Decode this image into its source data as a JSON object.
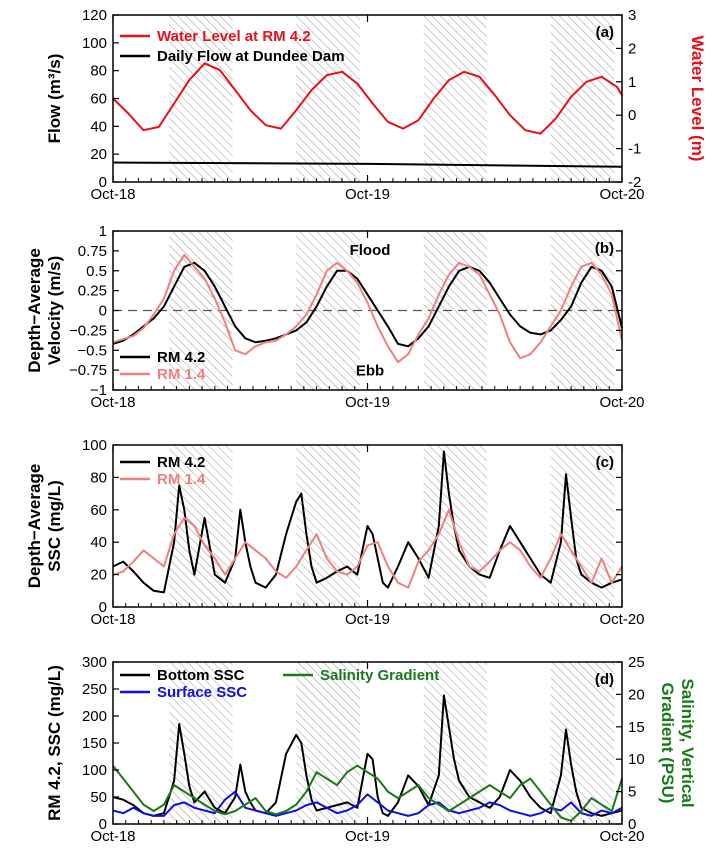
{
  "colors": {
    "red": "#e8101a",
    "pink": "#f08080",
    "black": "#000000",
    "blue": "#1010e0",
    "green": "#1a7a1a",
    "hatch": "#999999"
  },
  "chart_data": [
    {
      "panel": "(a)",
      "type": "line",
      "ylabel": "Flow (m³/s)",
      "ylabel2": "Water Level (m)",
      "ylim": [
        0,
        120
      ],
      "yticks": [
        0,
        20,
        40,
        60,
        80,
        100,
        120
      ],
      "ylim2": [
        -2,
        3
      ],
      "yticks2": [
        -2,
        -1,
        0,
        1,
        2,
        3
      ],
      "xticks": [
        "Oct-18",
        "Oct-19",
        "Oct-20"
      ],
      "legend": [
        "Water Level at RM 4.2",
        "Daily Flow at Dundee Dam"
      ],
      "shaded_intervals_hours": [
        [
          11,
          23.5
        ],
        [
          36,
          48.5
        ],
        [
          61,
          73.5
        ],
        [
          86,
          98.5
        ]
      ],
      "series": [
        {
          "name": "Water Level at RM 4.2",
          "axis": "right",
          "color": "red",
          "x": [
            0,
            3,
            6,
            9,
            12,
            15,
            18,
            21,
            24,
            27,
            30,
            33,
            36,
            39,
            42,
            45,
            48,
            51,
            54,
            57,
            60,
            63,
            66,
            69,
            72,
            75,
            78,
            81,
            84,
            87,
            90,
            93,
            96,
            99,
            100
          ],
          "y": [
            0.5,
            0.05,
            -0.45,
            -0.35,
            0.35,
            1.05,
            1.55,
            1.35,
            0.75,
            0.15,
            -0.3,
            -0.4,
            0.15,
            0.75,
            1.2,
            1.3,
            0.95,
            0.35,
            -0.2,
            -0.4,
            -0.15,
            0.5,
            1.05,
            1.3,
            1.15,
            0.6,
            0.0,
            -0.45,
            -0.55,
            -0.1,
            0.55,
            1.0,
            1.15,
            0.85,
            0.6
          ]
        },
        {
          "name": "Daily Flow at Dundee Dam",
          "axis": "left",
          "color": "black",
          "x": [
            0,
            50,
            100
          ],
          "y": [
            14,
            13,
            11
          ]
        }
      ]
    },
    {
      "panel": "(b)",
      "type": "line",
      "ylabel": "Depth−Average\nVelocity (m/s)",
      "ylim": [
        -1,
        1
      ],
      "yticks": [
        -1,
        -0.75,
        -0.5,
        -0.25,
        0,
        0.25,
        0.5,
        0.75,
        1
      ],
      "yticklabels": [
        "−1",
        "−0.75",
        "−0.5",
        "−0.25",
        "0",
        "0.25",
        "0.5",
        "0.75",
        "1"
      ],
      "xticks": [
        "Oct-18",
        "Oct-19",
        "Oct-20"
      ],
      "annotations": [
        "Flood",
        "Ebb"
      ],
      "legend": [
        "RM 4.2",
        "RM 1.4"
      ],
      "series": [
        {
          "name": "RM 4.2",
          "color": "black",
          "x": [
            0,
            2,
            4,
            6,
            8,
            10,
            12,
            14,
            16,
            18,
            20,
            22,
            24,
            26,
            28,
            30,
            32,
            34,
            36,
            38,
            40,
            42,
            44,
            46,
            48,
            50,
            52,
            54,
            56,
            58,
            60,
            62,
            64,
            66,
            68,
            70,
            72,
            74,
            76,
            78,
            80,
            82,
            84,
            86,
            88,
            90,
            92,
            94,
            96,
            98,
            100
          ],
          "y": [
            -0.42,
            -0.38,
            -0.3,
            -0.2,
            -0.1,
            0.05,
            0.3,
            0.55,
            0.6,
            0.5,
            0.3,
            0.05,
            -0.2,
            -0.35,
            -0.4,
            -0.38,
            -0.35,
            -0.3,
            -0.25,
            -0.15,
            0.05,
            0.3,
            0.5,
            0.5,
            0.4,
            0.2,
            0.0,
            -0.2,
            -0.42,
            -0.45,
            -0.35,
            -0.2,
            0.05,
            0.3,
            0.5,
            0.55,
            0.5,
            0.35,
            0.15,
            -0.05,
            -0.2,
            -0.28,
            -0.3,
            -0.25,
            -0.12,
            0.05,
            0.35,
            0.55,
            0.5,
            0.3,
            -0.22
          ]
        },
        {
          "name": "RM 1.4",
          "color": "pink",
          "x": [
            0,
            2,
            4,
            6,
            8,
            10,
            12,
            14,
            16,
            18,
            20,
            22,
            24,
            26,
            28,
            30,
            32,
            34,
            36,
            38,
            40,
            42,
            44,
            46,
            48,
            50,
            52,
            54,
            56,
            58,
            60,
            62,
            64,
            66,
            68,
            70,
            72,
            74,
            76,
            78,
            80,
            82,
            84,
            86,
            88,
            90,
            92,
            94,
            96,
            98,
            100
          ],
          "y": [
            -0.4,
            -0.36,
            -0.32,
            -0.22,
            -0.05,
            0.15,
            0.5,
            0.7,
            0.55,
            0.4,
            0.15,
            -0.15,
            -0.5,
            -0.55,
            -0.45,
            -0.4,
            -0.38,
            -0.3,
            -0.2,
            -0.05,
            0.2,
            0.5,
            0.6,
            0.5,
            0.35,
            0.1,
            -0.2,
            -0.45,
            -0.65,
            -0.55,
            -0.3,
            -0.1,
            0.2,
            0.45,
            0.6,
            0.55,
            0.45,
            0.2,
            -0.05,
            -0.4,
            -0.6,
            -0.55,
            -0.4,
            -0.2,
            0.0,
            0.3,
            0.55,
            0.6,
            0.45,
            0.2,
            -0.38
          ]
        }
      ]
    },
    {
      "panel": "(c)",
      "type": "line",
      "ylabel": "Depth−Average\nSSC (mg/L)",
      "ylim": [
        0,
        100
      ],
      "yticks": [
        0,
        20,
        40,
        60,
        80,
        100
      ],
      "xticks": [
        "Oct-18",
        "Oct-19",
        "Oct-20"
      ],
      "legend": [
        "RM 4.2",
        "RM 1.4"
      ],
      "series": [
        {
          "name": "RM 4.2",
          "color": "black",
          "x": [
            0,
            2,
            4,
            6,
            8,
            10,
            12,
            13,
            14,
            15,
            16,
            18,
            20,
            22,
            24,
            25,
            26,
            27,
            28,
            30,
            32,
            34,
            36,
            37,
            38,
            39,
            40,
            42,
            44,
            46,
            48,
            50,
            51,
            52,
            53,
            54,
            56,
            58,
            60,
            62,
            64,
            65,
            66,
            67,
            68,
            70,
            72,
            74,
            76,
            78,
            80,
            82,
            84,
            86,
            88,
            89,
            90,
            91,
            92,
            94,
            96,
            98,
            100
          ],
          "y": [
            25,
            28,
            22,
            15,
            10,
            9,
            40,
            75,
            60,
            35,
            20,
            55,
            20,
            15,
            30,
            60,
            40,
            25,
            15,
            12,
            20,
            45,
            65,
            70,
            45,
            25,
            15,
            18,
            22,
            25,
            20,
            50,
            45,
            30,
            15,
            12,
            25,
            40,
            30,
            18,
            50,
            96,
            70,
            50,
            35,
            25,
            20,
            18,
            35,
            50,
            40,
            30,
            20,
            15,
            40,
            82,
            55,
            30,
            20,
            15,
            12,
            15,
            17
          ]
        },
        {
          "name": "RM 1.4",
          "color": "pink",
          "x": [
            0,
            2,
            4,
            6,
            8,
            10,
            12,
            14,
            16,
            18,
            20,
            22,
            24,
            26,
            28,
            30,
            32,
            34,
            36,
            38,
            40,
            42,
            44,
            46,
            48,
            50,
            52,
            54,
            56,
            58,
            60,
            62,
            64,
            66,
            68,
            70,
            72,
            74,
            76,
            78,
            80,
            82,
            84,
            86,
            88,
            90,
            92,
            94,
            96,
            98,
            100
          ],
          "y": [
            20,
            22,
            28,
            35,
            30,
            25,
            45,
            55,
            50,
            38,
            30,
            20,
            30,
            40,
            35,
            30,
            22,
            18,
            25,
            35,
            45,
            30,
            22,
            20,
            25,
            38,
            40,
            25,
            15,
            12,
            28,
            35,
            45,
            60,
            40,
            25,
            22,
            28,
            35,
            40,
            35,
            25,
            18,
            30,
            45,
            35,
            25,
            15,
            30,
            15,
            25
          ]
        }
      ]
    },
    {
      "panel": "(d)",
      "type": "line",
      "ylabel": "RM 4.2, SSC (mg/L)",
      "ylabel2": "Salinity, Vertical\nGradient (PSU)",
      "ylim": [
        0,
        300
      ],
      "yticks": [
        0,
        50,
        100,
        150,
        200,
        250,
        300
      ],
      "ylim2": [
        0,
        25
      ],
      "yticks2": [
        0,
        5,
        10,
        15,
        20,
        25
      ],
      "xticks": [
        "Oct-18",
        "Oct-19",
        "Oct-20"
      ],
      "legend": [
        "Bottom SSC",
        "Surface SSC",
        "Salinity Gradient"
      ],
      "series": [
        {
          "name": "Bottom SSC",
          "color": "black",
          "x": [
            0,
            2,
            4,
            6,
            8,
            10,
            12,
            13,
            14,
            15,
            16,
            18,
            20,
            22,
            24,
            25,
            26,
            27,
            28,
            30,
            32,
            34,
            36,
            37,
            38,
            39,
            40,
            42,
            44,
            46,
            48,
            50,
            51,
            52,
            53,
            54,
            56,
            58,
            60,
            62,
            64,
            65,
            66,
            67,
            68,
            70,
            72,
            74,
            76,
            78,
            80,
            82,
            84,
            86,
            88,
            89,
            90,
            91,
            92,
            94,
            96,
            98,
            100
          ],
          "y": [
            50,
            45,
            35,
            20,
            15,
            20,
            80,
            185,
            130,
            70,
            40,
            60,
            30,
            20,
            50,
            110,
            60,
            40,
            25,
            20,
            40,
            130,
            165,
            150,
            90,
            45,
            25,
            30,
            35,
            40,
            30,
            130,
            120,
            50,
            20,
            15,
            40,
            90,
            70,
            35,
            90,
            238,
            180,
            120,
            80,
            50,
            40,
            30,
            50,
            100,
            80,
            50,
            30,
            20,
            90,
            175,
            110,
            60,
            30,
            20,
            15,
            20,
            25
          ]
        },
        {
          "name": "Surface SSC",
          "color": "blue",
          "x": [
            0,
            2,
            4,
            6,
            8,
            10,
            12,
            14,
            16,
            18,
            20,
            22,
            24,
            26,
            28,
            30,
            32,
            34,
            36,
            38,
            40,
            42,
            44,
            46,
            48,
            50,
            52,
            54,
            56,
            58,
            60,
            62,
            64,
            66,
            68,
            70,
            72,
            74,
            76,
            78,
            80,
            82,
            84,
            86,
            88,
            90,
            92,
            94,
            96,
            98,
            100
          ],
          "y": [
            25,
            20,
            30,
            20,
            15,
            15,
            35,
            40,
            30,
            25,
            20,
            45,
            60,
            30,
            25,
            20,
            15,
            20,
            25,
            35,
            40,
            30,
            20,
            25,
            35,
            55,
            40,
            25,
            20,
            15,
            20,
            35,
            40,
            25,
            20,
            25,
            30,
            40,
            35,
            25,
            20,
            15,
            20,
            30,
            25,
            40,
            20,
            15,
            25,
            20,
            30
          ]
        },
        {
          "name": "Salinity Gradient",
          "color": "green",
          "axis": "right",
          "x": [
            0,
            2,
            4,
            6,
            8,
            10,
            12,
            14,
            16,
            18,
            20,
            22,
            24,
            26,
            28,
            30,
            32,
            34,
            36,
            38,
            40,
            42,
            44,
            46,
            48,
            50,
            52,
            54,
            56,
            58,
            60,
            62,
            64,
            66,
            68,
            70,
            72,
            74,
            76,
            78,
            80,
            82,
            84,
            86,
            88,
            90,
            92,
            94,
            96,
            98,
            100
          ],
          "y": [
            9,
            7,
            5,
            3,
            2,
            3,
            6,
            5,
            4,
            3,
            2,
            1.5,
            2,
            3,
            4,
            2,
            1.5,
            2,
            3,
            5,
            8,
            7,
            6,
            8,
            9,
            8,
            7,
            5,
            4,
            5,
            6,
            4,
            3,
            2,
            3,
            4,
            5,
            6,
            5,
            4,
            6,
            7,
            5,
            3,
            1,
            0.5,
            2,
            4,
            3,
            2,
            7
          ]
        }
      ]
    }
  ]
}
